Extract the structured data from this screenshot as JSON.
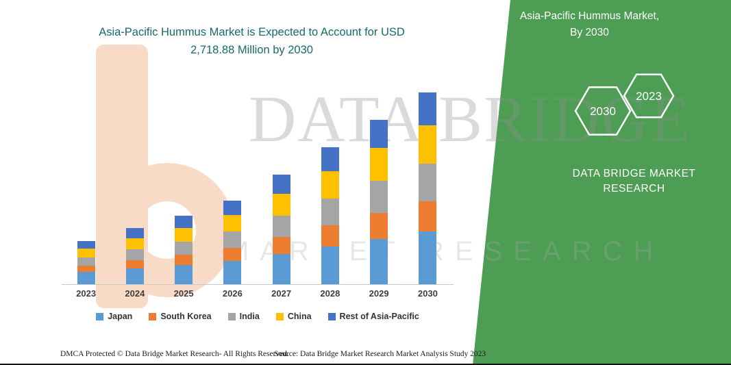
{
  "main_title": {
    "line1": "Asia-Pacific Hummus Market is Expected to Account for USD",
    "line2": "2,718.88 Million by 2030",
    "color": "#17696B"
  },
  "side_panel": {
    "bg_color": "#4E9D54",
    "title_line1": "Asia-Pacific Hummus Market,",
    "title_line2": "By 2030",
    "hexagon_left": "2030",
    "hexagon_right": "2023",
    "brand_line1": "DATA BRIDGE MARKET",
    "brand_line2": "RESEARCH"
  },
  "watermarks": {
    "brand_text": "DATA BRIDGE",
    "sub_text": "MARKET RESEARCH"
  },
  "chart_data": {
    "type": "bar",
    "stacked": true,
    "title": "Asia-Pacific Hummus Market is Expected to Account for USD 2,718.88 Million by 2030",
    "unit": "USD Million",
    "categories": [
      "2023",
      "2024",
      "2025",
      "2026",
      "2027",
      "2028",
      "2029",
      "2030"
    ],
    "series": [
      {
        "name": "Japan",
        "color": "#5B9BD5",
        "values": [
          175,
          223,
          272,
          330,
          427,
          534,
          641,
          748
        ]
      },
      {
        "name": "South Korea",
        "color": "#ED7D31",
        "values": [
          87,
          117,
          146,
          184,
          243,
          301,
          369,
          427
        ]
      },
      {
        "name": "India",
        "color": "#A5A5A5",
        "values": [
          117,
          155,
          184,
          233,
          301,
          379,
          456,
          534
        ]
      },
      {
        "name": "China",
        "color": "#FFC000",
        "values": [
          126,
          155,
          194,
          233,
          311,
          388,
          466,
          544
        ]
      },
      {
        "name": "Rest of Asia-Pacific",
        "color": "#4472C4",
        "values": [
          107,
          146,
          175,
          204,
          272,
          340,
          398,
          465.88
        ]
      }
    ],
    "ylim": [
      0,
      2800
    ],
    "grid": false,
    "legend_position": "bottom",
    "highlight_total_2030": 2718.88
  },
  "footer": {
    "dmca": "DMCA Protected © Data Bridge Market Research-  All Rights Reserved.",
    "source": "Source: Data Bridge Market Research  Market Analysis Study 2023"
  }
}
